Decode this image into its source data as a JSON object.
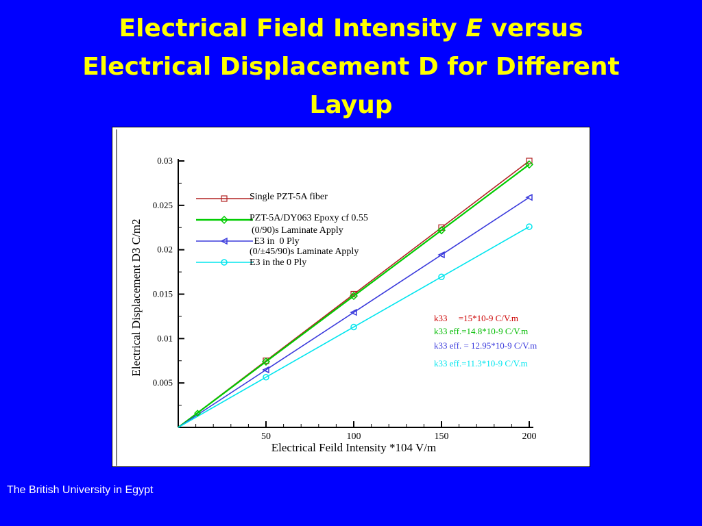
{
  "slide": {
    "title_part1": "Electrical Field Intensity ",
    "title_italic": "E",
    "title_part2": " versus",
    "title_line2": "Electrical Displacement D for Different",
    "title_line3": "Layup",
    "footer": "The British University in Egypt"
  },
  "colors": {
    "background": "#0000ff",
    "title": "#ffff00",
    "footer": "#ffffff",
    "series": [
      "#b22222",
      "#00cc00",
      "#3a3adc",
      "#00e5ee"
    ],
    "annotations": [
      "#cc0000",
      "#00bb00",
      "#3a3adc",
      "#00e5ee"
    ]
  },
  "chart_data": {
    "type": "line",
    "xlabel": "Electrical Feild Intensity *104 V/m",
    "ylabel": "Electrical Displacement D3 C/m2",
    "xlim": [
      0,
      200
    ],
    "ylim": [
      0,
      0.03
    ],
    "xticks": [
      50,
      100,
      150,
      200
    ],
    "xtick_labels": [
      "50",
      "100",
      "150",
      "200"
    ],
    "yticks": [
      0.005,
      0.01,
      0.015,
      0.02,
      0.025,
      0.03
    ],
    "ytick_labels": [
      "0.005",
      "0.01",
      "0.015",
      "0.02",
      "0.025",
      "0.03"
    ],
    "grid": false,
    "legend_position": "top-left",
    "series": [
      {
        "name": "Single PZT-5A fiber",
        "marker": "square",
        "x": [
          0,
          50,
          100,
          150,
          200
        ],
        "y": [
          0,
          0.0075,
          0.015,
          0.0225,
          0.03
        ]
      },
      {
        "name": "PZT-5A/DY063 Epoxy cf 0.55",
        "marker": "diamond",
        "x": [
          0,
          50,
          100,
          150,
          200
        ],
        "y": [
          0,
          0.0074,
          0.0148,
          0.0222,
          0.0296
        ]
      },
      {
        "name": "(0/90)s Laminate Apply\n E3 in  0 Ply",
        "marker": "triangle-left",
        "x": [
          0,
          50,
          100,
          150,
          200
        ],
        "y": [
          0,
          0.00648,
          0.01295,
          0.01943,
          0.0259
        ]
      },
      {
        "name": "(0/±45/90)s Laminate Apply\nE3 in the 0 Ply",
        "marker": "circle",
        "x": [
          0,
          50,
          100,
          150,
          200
        ],
        "y": [
          0,
          0.00565,
          0.0113,
          0.01695,
          0.0226
        ]
      }
    ],
    "annotations": [
      "k33     =15*10-9 C/V.m",
      "k33 eff.=14.8*10-9 C/V.m",
      "k33 eff. = 12.95*10-9 C/V.m",
      "k33 eff.=11.3*10-9 C/V.m"
    ]
  }
}
